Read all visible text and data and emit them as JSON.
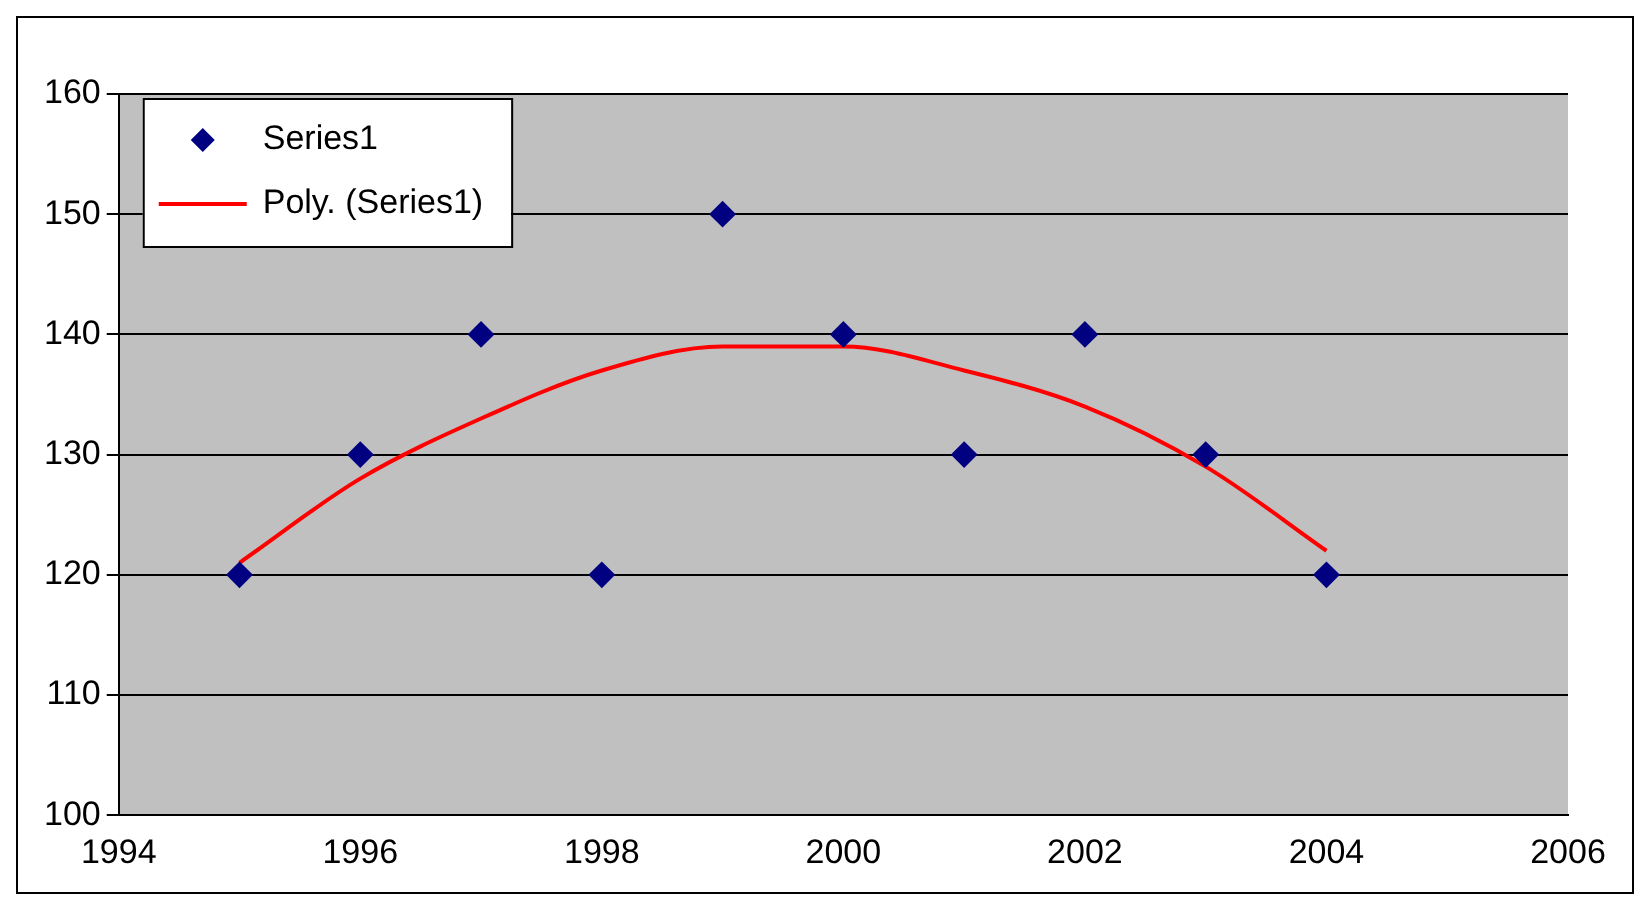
{
  "chart_data": {
    "type": "scatter",
    "x": [
      1995,
      1996,
      1997,
      1998,
      1999,
      2000,
      2001,
      2002,
      2003,
      2004
    ],
    "series": [
      {
        "name": "Series1",
        "color": "#000080",
        "marker": "diamond",
        "values": [
          120,
          130,
          140,
          120,
          150,
          140,
          130,
          140,
          130,
          120
        ]
      },
      {
        "name": "Poly. (Series1)",
        "type": "line",
        "color": "#ff0000",
        "marker": "none",
        "line_style": "solid",
        "values": [
          121,
          128,
          133,
          137,
          139,
          139,
          137,
          134,
          129,
          122
        ]
      }
    ],
    "xlim": [
      1994,
      2006
    ],
    "xticks": [
      1994,
      1996,
      1998,
      2000,
      2002,
      2004,
      2006
    ],
    "ylim": [
      100,
      160
    ],
    "yticks": [
      100,
      110,
      120,
      130,
      140,
      150,
      160
    ],
    "grid": "y",
    "legend": "top left"
  }
}
